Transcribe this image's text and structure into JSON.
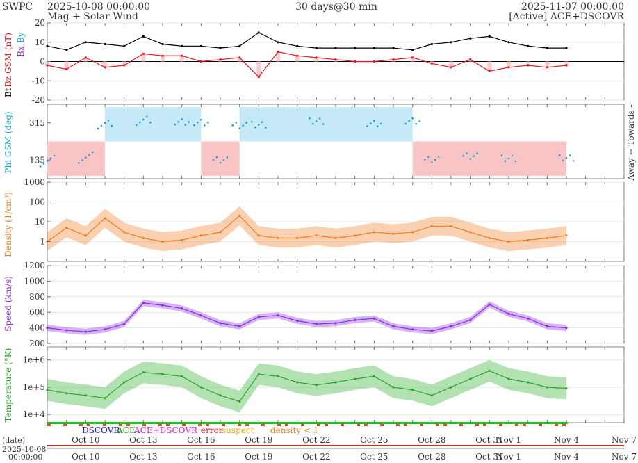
{
  "header": {
    "org": "SWPC",
    "start_time": "2025-10-08 00:00:00",
    "subtitle": "Mag + Solar Wind",
    "span": "30 days@30 min",
    "end_time": "2025-11-07 00:00:00",
    "source": "[Active] ACE+DSCOVR"
  },
  "legend": {
    "dscovr": "DSCOVR",
    "ace": "ACE",
    "ace_dscovr": "ACE+DSCOVR",
    "error": "error",
    "suspect": "suspect",
    "density": "density < 1"
  },
  "date_axis": {
    "label": "(date)",
    "stamp_date": "2025-10-08",
    "stamp_time": "00:00:00",
    "ticks": [
      "Oct 10",
      "Oct 13",
      "Oct 16",
      "Oct 19",
      "Oct 22",
      "Oct 25",
      "Oct 28",
      "Oct 31",
      "Nov 1",
      "Nov 4",
      "Nov 7"
    ]
  },
  "colors": {
    "bt": "#000000",
    "bz": "#e8141e",
    "bx": "#9b30d0",
    "by": "#18a6d8",
    "phi_points": "#1da1dd",
    "away_fill": "#c6e9f8",
    "toward_fill": "#f9c4c4",
    "density": "#f07c1c",
    "speed": "#8a2be2",
    "temperature": "#22a922",
    "status_green": "#19c319",
    "status_red": "#e8401a"
  },
  "chart_data": [
    {
      "type": "line",
      "panel": "magnetic field",
      "ylabel_parts": [
        "Bt",
        "Bz GSM (nT)",
        "Bx",
        "By"
      ],
      "ylim": [
        -20,
        20
      ],
      "yticks": [
        "20",
        "10",
        "0",
        "-10",
        "-20"
      ],
      "x": [
        "2025-10-08",
        "2025-10-09",
        "2025-10-10",
        "2025-10-11",
        "2025-10-12",
        "2025-10-13",
        "2025-10-14",
        "2025-10-15",
        "2025-10-16",
        "2025-10-17",
        "2025-10-18",
        "2025-10-19",
        "2025-10-20",
        "2025-10-21",
        "2025-10-22",
        "2025-10-23",
        "2025-10-24",
        "2025-10-25",
        "2025-10-26",
        "2025-10-27",
        "2025-10-28",
        "2025-10-29",
        "2025-10-30",
        "2025-10-31",
        "2025-11-01",
        "2025-11-02",
        "2025-11-03",
        "2025-11-04"
      ],
      "series": [
        {
          "name": "Bt",
          "values": [
            8,
            6,
            10,
            9,
            8,
            13,
            9,
            8,
            8,
            7,
            8,
            15,
            10,
            8,
            7,
            7,
            7,
            7,
            7,
            6,
            9,
            10,
            12,
            13,
            10,
            8,
            7,
            7
          ]
        },
        {
          "name": "Bz GSM",
          "values": [
            -2,
            -4,
            2,
            -3,
            -2,
            4,
            3,
            3,
            0,
            1,
            2,
            -8,
            5,
            3,
            2,
            1,
            0,
            0,
            1,
            2,
            -1,
            -3,
            1,
            -5,
            -3,
            -2,
            -3,
            -2
          ]
        }
      ]
    },
    {
      "type": "scatter",
      "panel": "phi",
      "ylabel": "Phi GSM (deg)",
      "ylim": [
        45,
        405
      ],
      "yticks": [
        "315",
        "135"
      ],
      "right_label": "Away + Towards -",
      "x": [
        "2025-10-08",
        "2025-10-10",
        "2025-10-11",
        "2025-10-13",
        "2025-10-15",
        "2025-10-16",
        "2025-10-17",
        "2025-10-18",
        "2025-10-19",
        "2025-10-22",
        "2025-10-25",
        "2025-10-27",
        "2025-10-28",
        "2025-10-30",
        "2025-11-01",
        "2025-11-04"
      ],
      "values": [
        150,
        160,
        320,
        330,
        325,
        315,
        140,
        300,
        310,
        320,
        315,
        320,
        140,
        150,
        145,
        140
      ]
    },
    {
      "type": "line",
      "panel": "density",
      "ylabel": "Density (1/cm³)",
      "ylim": [
        0.1,
        1000
      ],
      "yscale": "log",
      "yticks": [
        "1000",
        "100",
        "10",
        "1"
      ],
      "x": [
        "2025-10-08",
        "2025-10-09",
        "2025-10-10",
        "2025-10-11",
        "2025-10-12",
        "2025-10-13",
        "2025-10-14",
        "2025-10-15",
        "2025-10-16",
        "2025-10-17",
        "2025-10-18",
        "2025-10-19",
        "2025-10-20",
        "2025-10-21",
        "2025-10-22",
        "2025-10-23",
        "2025-10-24",
        "2025-10-25",
        "2025-10-26",
        "2025-10-27",
        "2025-10-28",
        "2025-10-29",
        "2025-10-30",
        "2025-10-31",
        "2025-11-01",
        "2025-11-02",
        "2025-11-03",
        "2025-11-04"
      ],
      "values": [
        1,
        5,
        2,
        15,
        3,
        1.5,
        1,
        1.2,
        2,
        3,
        20,
        2,
        1.5,
        1.5,
        2,
        1.5,
        2,
        3,
        2.5,
        3,
        6,
        6,
        3,
        1.5,
        1,
        1.2,
        1.5,
        2
      ]
    },
    {
      "type": "line",
      "panel": "speed",
      "ylabel": "Speed (km/s)",
      "ylim": [
        200,
        1200
      ],
      "yticks": [
        "1200",
        "1000",
        "800",
        "600",
        "400",
        "200"
      ],
      "x": [
        "2025-10-08",
        "2025-10-09",
        "2025-10-10",
        "2025-10-11",
        "2025-10-12",
        "2025-10-13",
        "2025-10-14",
        "2025-10-15",
        "2025-10-16",
        "2025-10-17",
        "2025-10-18",
        "2025-10-19",
        "2025-10-20",
        "2025-10-21",
        "2025-10-22",
        "2025-10-23",
        "2025-10-24",
        "2025-10-25",
        "2025-10-26",
        "2025-10-27",
        "2025-10-28",
        "2025-10-29",
        "2025-10-30",
        "2025-10-31",
        "2025-11-01",
        "2025-11-02",
        "2025-11-03",
        "2025-11-04"
      ],
      "values": [
        400,
        370,
        350,
        380,
        450,
        720,
        690,
        650,
        560,
        460,
        420,
        540,
        560,
        490,
        450,
        460,
        500,
        520,
        420,
        380,
        360,
        420,
        500,
        700,
        580,
        520,
        420,
        400
      ]
    },
    {
      "type": "line",
      "panel": "temperature",
      "ylabel": "Temperature (°K)",
      "ylim": [
        5000,
        3000000
      ],
      "yscale": "log",
      "yticks": [
        "1e+6",
        "1e+5",
        "1e+4"
      ],
      "x": [
        "2025-10-08",
        "2025-10-09",
        "2025-10-10",
        "2025-10-11",
        "2025-10-12",
        "2025-10-13",
        "2025-10-14",
        "2025-10-15",
        "2025-10-16",
        "2025-10-17",
        "2025-10-18",
        "2025-10-19",
        "2025-10-20",
        "2025-10-21",
        "2025-10-22",
        "2025-10-23",
        "2025-10-24",
        "2025-10-25",
        "2025-10-26",
        "2025-10-27",
        "2025-10-28",
        "2025-10-29",
        "2025-10-30",
        "2025-10-31",
        "2025-11-01",
        "2025-11-02",
        "2025-11-03",
        "2025-11-04"
      ],
      "values": [
        80000,
        60000,
        50000,
        40000,
        150000,
        350000,
        300000,
        250000,
        100000,
        50000,
        30000,
        300000,
        250000,
        150000,
        120000,
        150000,
        200000,
        250000,
        100000,
        80000,
        50000,
        100000,
        200000,
        400000,
        200000,
        150000,
        100000,
        90000
      ]
    }
  ]
}
